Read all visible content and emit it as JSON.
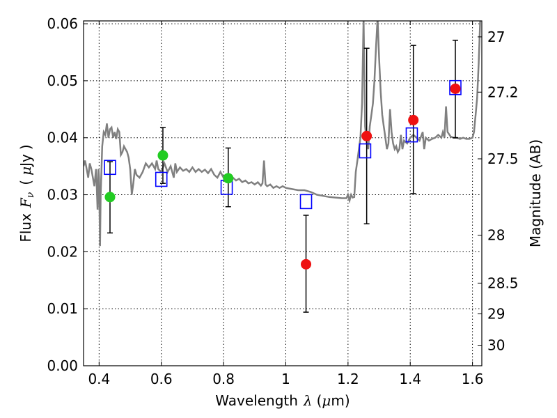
{
  "chart_data": {
    "type": "scatter",
    "xlabel": {
      "prefix": "Wavelength",
      "symbol": "λ",
      "unit_open": "(",
      "unit_mu": "μ",
      "unit_rest": "m)"
    },
    "ylabel": {
      "prefix": "Flux",
      "symbol": "F",
      "subscript": "ν",
      "unit_open": "(",
      "unit_mu": "μ",
      "unit_rest": "Jy",
      "unit_close": ")"
    },
    "ylabel_right": "Magnitude (AB)",
    "xlim": [
      0.35,
      1.63
    ],
    "ylim": [
      0.0,
      0.0605
    ],
    "xticks": [
      {
        "value": 0.4,
        "label": "0.4"
      },
      {
        "value": 0.6,
        "label": "0.6"
      },
      {
        "value": 0.8,
        "label": "0.8"
      },
      {
        "value": 1.0,
        "label": "1"
      },
      {
        "value": 1.2,
        "label": "1.2"
      },
      {
        "value": 1.4,
        "label": "1.4"
      },
      {
        "value": 1.6,
        "label": "1.6"
      }
    ],
    "yticks": [
      {
        "value": 0.0,
        "label": "0.00"
      },
      {
        "value": 0.01,
        "label": "0.01"
      },
      {
        "value": 0.02,
        "label": "0.02"
      },
      {
        "value": 0.03,
        "label": "0.03"
      },
      {
        "value": 0.04,
        "label": "0.04"
      },
      {
        "value": 0.05,
        "label": "0.05"
      },
      {
        "value": 0.06,
        "label": "0.06"
      }
    ],
    "right_ticks": [
      {
        "flux": 0.0577,
        "label": "27"
      },
      {
        "flux": 0.048,
        "label": "27.2"
      },
      {
        "flux": 0.0363,
        "label": "27.5"
      },
      {
        "flux": 0.0229,
        "label": "28"
      },
      {
        "flux": 0.0145,
        "label": "28.5"
      },
      {
        "flux": 0.0091,
        "label": "29"
      },
      {
        "flux": 0.0036,
        "label": "30"
      }
    ],
    "grid": true,
    "series": [
      {
        "kind": "line",
        "color": "#808080",
        "points": [
          [
            0.35,
            0.035
          ],
          [
            0.355,
            0.036
          ],
          [
            0.36,
            0.0345
          ],
          [
            0.365,
            0.033
          ],
          [
            0.37,
            0.0355
          ],
          [
            0.375,
            0.0345
          ],
          [
            0.38,
            0.033
          ],
          [
            0.385,
            0.0315
          ],
          [
            0.39,
            0.0345
          ],
          [
            0.392,
            0.032
          ],
          [
            0.395,
            0.0274
          ],
          [
            0.398,
            0.0345
          ],
          [
            0.4,
            0.033
          ],
          [
            0.403,
            0.021
          ],
          [
            0.405,
            0.03
          ],
          [
            0.41,
            0.0385
          ],
          [
            0.415,
            0.041
          ],
          [
            0.42,
            0.0405
          ],
          [
            0.425,
            0.0425
          ],
          [
            0.43,
            0.04
          ],
          [
            0.435,
            0.0415
          ],
          [
            0.44,
            0.0418
          ],
          [
            0.445,
            0.04
          ],
          [
            0.45,
            0.041
          ],
          [
            0.455,
            0.0398
          ],
          [
            0.46,
            0.0415
          ],
          [
            0.465,
            0.041
          ],
          [
            0.47,
            0.037
          ],
          [
            0.475,
            0.0375
          ],
          [
            0.48,
            0.0385
          ],
          [
            0.485,
            0.038
          ],
          [
            0.49,
            0.0375
          ],
          [
            0.495,
            0.0365
          ],
          [
            0.5,
            0.0345
          ],
          [
            0.505,
            0.03
          ],
          [
            0.51,
            0.032
          ],
          [
            0.515,
            0.0345
          ],
          [
            0.52,
            0.0335
          ],
          [
            0.53,
            0.033
          ],
          [
            0.54,
            0.034
          ],
          [
            0.55,
            0.0355
          ],
          [
            0.56,
            0.0348
          ],
          [
            0.57,
            0.0355
          ],
          [
            0.58,
            0.0345
          ],
          [
            0.585,
            0.036
          ],
          [
            0.59,
            0.0345
          ],
          [
            0.6,
            0.034
          ],
          [
            0.61,
            0.0355
          ],
          [
            0.62,
            0.034
          ],
          [
            0.63,
            0.035
          ],
          [
            0.64,
            0.033
          ],
          [
            0.645,
            0.0355
          ],
          [
            0.65,
            0.034
          ],
          [
            0.66,
            0.0348
          ],
          [
            0.67,
            0.0342
          ],
          [
            0.68,
            0.0345
          ],
          [
            0.69,
            0.034
          ],
          [
            0.7,
            0.0348
          ],
          [
            0.71,
            0.034
          ],
          [
            0.72,
            0.0345
          ],
          [
            0.73,
            0.034
          ],
          [
            0.74,
            0.0344
          ],
          [
            0.75,
            0.0338
          ],
          [
            0.76,
            0.0345
          ],
          [
            0.77,
            0.0335
          ],
          [
            0.78,
            0.033
          ],
          [
            0.79,
            0.034
          ],
          [
            0.8,
            0.033
          ],
          [
            0.81,
            0.0335
          ],
          [
            0.82,
            0.0325
          ],
          [
            0.83,
            0.033
          ],
          [
            0.84,
            0.0325
          ],
          [
            0.85,
            0.0328
          ],
          [
            0.86,
            0.0322
          ],
          [
            0.87,
            0.0325
          ],
          [
            0.88,
            0.032
          ],
          [
            0.89,
            0.0322
          ],
          [
            0.9,
            0.0318
          ],
          [
            0.91,
            0.0322
          ],
          [
            0.92,
            0.0316
          ],
          [
            0.925,
            0.032
          ],
          [
            0.93,
            0.036
          ],
          [
            0.935,
            0.0318
          ],
          [
            0.94,
            0.0315
          ],
          [
            0.95,
            0.0318
          ],
          [
            0.96,
            0.0312
          ],
          [
            0.97,
            0.0315
          ],
          [
            0.98,
            0.0312
          ],
          [
            0.99,
            0.0315
          ],
          [
            1.0,
            0.0312
          ],
          [
            1.02,
            0.031
          ],
          [
            1.04,
            0.0308
          ],
          [
            1.06,
            0.0308
          ],
          [
            1.08,
            0.0305
          ],
          [
            1.1,
            0.03
          ],
          [
            1.12,
            0.0298
          ],
          [
            1.14,
            0.0296
          ],
          [
            1.16,
            0.0295
          ],
          [
            1.18,
            0.0294
          ],
          [
            1.195,
            0.0294
          ],
          [
            1.2,
            0.03
          ],
          [
            1.205,
            0.029
          ],
          [
            1.21,
            0.03
          ],
          [
            1.215,
            0.0295
          ],
          [
            1.22,
            0.0296
          ],
          [
            1.225,
            0.034
          ],
          [
            1.23,
            0.036
          ],
          [
            1.235,
            0.038
          ],
          [
            1.24,
            0.04
          ],
          [
            1.245,
            0.046
          ],
          [
            1.25,
            0.061
          ],
          [
            1.255,
            0.042
          ],
          [
            1.26,
            0.039
          ],
          [
            1.265,
            0.038
          ],
          [
            1.27,
            0.042
          ],
          [
            1.275,
            0.044
          ],
          [
            1.28,
            0.046
          ],
          [
            1.285,
            0.05
          ],
          [
            1.29,
            0.056
          ],
          [
            1.295,
            0.061
          ],
          [
            1.3,
            0.054
          ],
          [
            1.305,
            0.048
          ],
          [
            1.31,
            0.044
          ],
          [
            1.315,
            0.042
          ],
          [
            1.32,
            0.04
          ],
          [
            1.325,
            0.038
          ],
          [
            1.33,
            0.039
          ],
          [
            1.335,
            0.045
          ],
          [
            1.34,
            0.041
          ],
          [
            1.345,
            0.039
          ],
          [
            1.35,
            0.038
          ],
          [
            1.355,
            0.0385
          ],
          [
            1.36,
            0.0375
          ],
          [
            1.365,
            0.038
          ],
          [
            1.37,
            0.0405
          ],
          [
            1.375,
            0.038
          ],
          [
            1.38,
            0.0395
          ],
          [
            1.39,
            0.039
          ],
          [
            1.4,
            0.04
          ],
          [
            1.41,
            0.0405
          ],
          [
            1.42,
            0.04
          ],
          [
            1.43,
            0.0395
          ],
          [
            1.44,
            0.041
          ],
          [
            1.445,
            0.038
          ],
          [
            1.45,
            0.04
          ],
          [
            1.46,
            0.0395
          ],
          [
            1.47,
            0.0398
          ],
          [
            1.48,
            0.04
          ],
          [
            1.49,
            0.0405
          ],
          [
            1.5,
            0.04
          ],
          [
            1.505,
            0.041
          ],
          [
            1.51,
            0.04
          ],
          [
            1.515,
            0.0455
          ],
          [
            1.52,
            0.041
          ],
          [
            1.53,
            0.0402
          ],
          [
            1.54,
            0.04
          ],
          [
            1.55,
            0.04
          ],
          [
            1.56,
            0.0398
          ],
          [
            1.57,
            0.04
          ],
          [
            1.58,
            0.0398
          ],
          [
            1.59,
            0.0398
          ],
          [
            1.6,
            0.04
          ],
          [
            1.605,
            0.041
          ],
          [
            1.61,
            0.044
          ],
          [
            1.615,
            0.047
          ],
          [
            1.62,
            0.053
          ],
          [
            1.625,
            0.061
          ]
        ]
      },
      {
        "kind": "squares",
        "color": "#0000ff",
        "points": [
          [
            0.435,
            0.0348
          ],
          [
            0.6,
            0.0327
          ],
          [
            0.81,
            0.0313
          ],
          [
            1.065,
            0.0288
          ],
          [
            1.255,
            0.0377
          ],
          [
            1.405,
            0.0405
          ],
          [
            1.545,
            0.0488
          ]
        ]
      },
      {
        "kind": "points",
        "color": "#22cc22",
        "points": [
          {
            "x": 0.435,
            "y": 0.0296,
            "err_low": 0.0233,
            "err_high": 0.0358
          },
          {
            "x": 0.605,
            "y": 0.0369,
            "err_low": 0.032,
            "err_high": 0.0418
          },
          {
            "x": 0.815,
            "y": 0.0329,
            "err_low": 0.0279,
            "err_high": 0.0382
          }
        ]
      },
      {
        "kind": "points",
        "color": "#ee1111",
        "points": [
          {
            "x": 1.065,
            "y": 0.0178,
            "err_low": 0.0094,
            "err_high": 0.0264
          },
          {
            "x": 1.26,
            "y": 0.0403,
            "err_low": 0.0249,
            "err_high": 0.0557
          },
          {
            "x": 1.41,
            "y": 0.0431,
            "err_low": 0.0302,
            "err_high": 0.0562
          },
          {
            "x": 1.545,
            "y": 0.0486,
            "err_low": 0.04,
            "err_high": 0.0571
          }
        ]
      }
    ]
  }
}
